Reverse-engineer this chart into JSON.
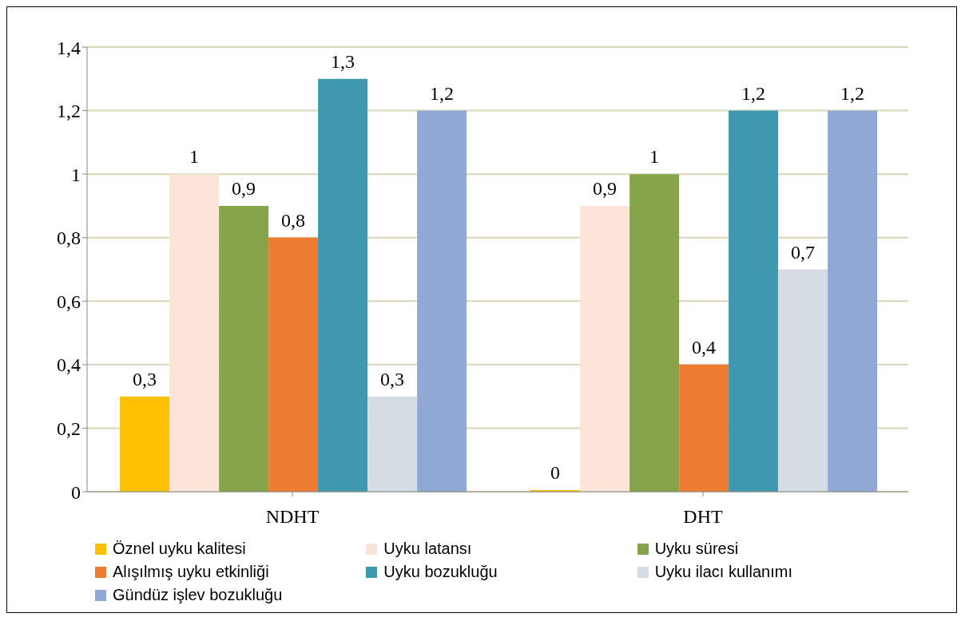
{
  "chart_data": {
    "type": "bar",
    "categories": [
      "NDHT",
      "DHT"
    ],
    "series": [
      {
        "name": "Öznel uyku kalitesi",
        "color": "#ffc000",
        "values": [
          0.3,
          0
        ],
        "value_labels": [
          "0,3",
          "0"
        ]
      },
      {
        "name": "Uyku latansı",
        "color": "#fde4d8",
        "values": [
          1,
          0.9
        ],
        "value_labels": [
          "1",
          "0,9"
        ]
      },
      {
        "name": "Uyku süresi",
        "color": "#86a54b",
        "values": [
          0.9,
          1
        ],
        "value_labels": [
          "0,9",
          "1"
        ]
      },
      {
        "name": "Alışılmış uyku etkinliği",
        "color": "#ed7d31",
        "values": [
          0.8,
          0.4
        ],
        "value_labels": [
          "0,8",
          "0,4"
        ]
      },
      {
        "name": "Uyku bozukluğu",
        "color": "#3d98b0",
        "values": [
          1.3,
          1.2
        ],
        "value_labels": [
          "1,3",
          "1,2"
        ]
      },
      {
        "name": "Uyku ilacı kullanımı",
        "color": "#d6dce4",
        "values": [
          0.3,
          0.7
        ],
        "value_labels": [
          "0,3",
          "0,7"
        ]
      },
      {
        "name": "Gündüz işlev bozukluğu",
        "color": "#8fa8d4",
        "values": [
          1.2,
          1.2
        ],
        "value_labels": [
          "1,2",
          "1,2"
        ]
      }
    ],
    "ylim": [
      0,
      1.4
    ],
    "yticks": [
      0,
      {
        "value": 0.2,
        "label": "0,2"
      },
      {
        "value": 0.4,
        "label": "0,4"
      },
      {
        "value": 0.6,
        "label": "0,6"
      },
      {
        "value": 0.8,
        "label": "0,8"
      },
      1,
      {
        "value": 1.2,
        "label": "1,2"
      },
      {
        "value": 1.4,
        "label": "1,4"
      }
    ],
    "grid": "y",
    "legend": "bottom"
  }
}
